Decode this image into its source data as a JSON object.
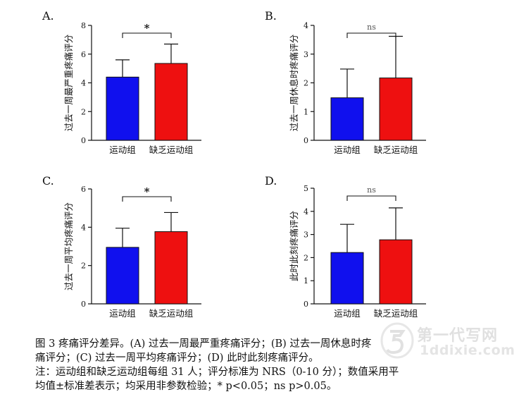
{
  "chart_data": [
    {
      "type": "bar",
      "panel_label": "A.",
      "ylabel": "过去一周最严重疼痛评分",
      "categories": [
        "运动组",
        "缺乏运动组"
      ],
      "values": [
        4.4,
        5.35
      ],
      "errors": [
        1.2,
        1.35
      ],
      "colors": [
        "#1010ee",
        "#ee1010"
      ],
      "ylim": [
        0,
        8
      ],
      "yticks": [
        0,
        2,
        4,
        6,
        8
      ],
      "significance": "*"
    },
    {
      "type": "bar",
      "panel_label": "B.",
      "ylabel": "过去一周休息时疼痛评分",
      "categories": [
        "运动组",
        "缺乏运动组"
      ],
      "values": [
        1.48,
        2.17
      ],
      "errors": [
        1.0,
        1.45
      ],
      "colors": [
        "#1010ee",
        "#ee1010"
      ],
      "ylim": [
        0,
        4
      ],
      "yticks": [
        0,
        1,
        2,
        3,
        4
      ],
      "significance": "ns"
    },
    {
      "type": "bar",
      "panel_label": "C.",
      "ylabel": "过去一周平均疼痛评分",
      "categories": [
        "运动组",
        "缺乏运动组"
      ],
      "values": [
        2.95,
        3.77
      ],
      "errors": [
        1.0,
        1.0
      ],
      "colors": [
        "#1010ee",
        "#ee1010"
      ],
      "ylim": [
        0,
        6
      ],
      "yticks": [
        0,
        2,
        4,
        6
      ],
      "significance": "*"
    },
    {
      "type": "bar",
      "panel_label": "D.",
      "ylabel": "此时此刻疼痛评分",
      "categories": [
        "运动组",
        "缺乏运动组"
      ],
      "values": [
        2.22,
        2.77
      ],
      "errors": [
        1.22,
        1.38
      ],
      "colors": [
        "#1010ee",
        "#ee1010"
      ],
      "ylim": [
        0,
        5
      ],
      "yticks": [
        0,
        1,
        2,
        3,
        4,
        5
      ],
      "significance": "ns"
    }
  ],
  "caption": {
    "line1": "图 3  疼痛评分差异。(A) 过去一周最严重疼痛评分；(B) 过去一周休息时疼",
    "line2": "痛评分；(C) 过去一周平均疼痛评分；(D) 此时此刻疼痛评分。",
    "line3": "注：运动组和缺乏运动组每组 31 人；评分标准为 NRS（0-10 分）；数值采用平",
    "line4": "均值±标准差表示；均采用非参数检验；* p<0.05；ns p>0.05。"
  },
  "watermark": {
    "line1": "第一代写网",
    "line2": "1ddixie.com"
  }
}
